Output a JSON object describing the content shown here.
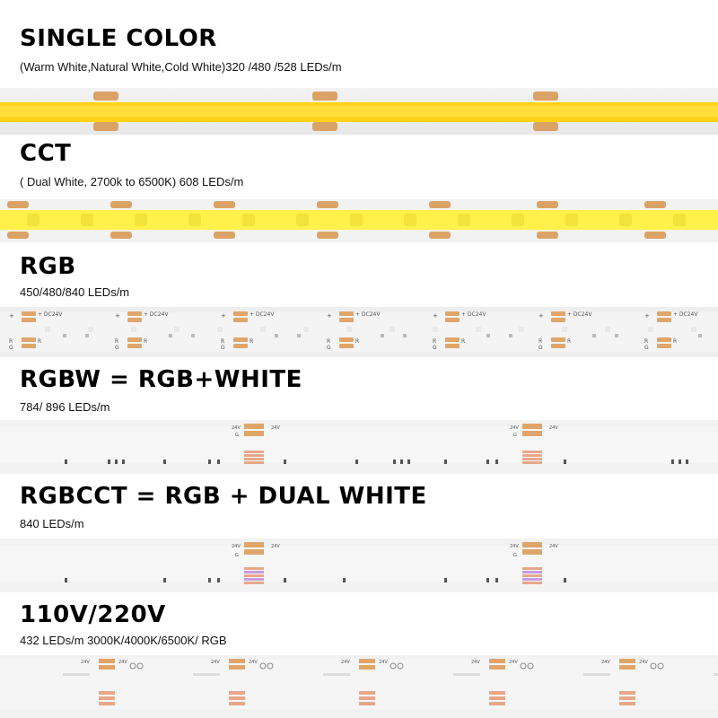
{
  "sections": [
    {
      "title": "SINGLE COLOR",
      "subtitle": "(Warm White,Natural White,Cold White)320 /480 /528 LEDs/m",
      "strip_type": "single-color-cob"
    },
    {
      "title": "CCT",
      "subtitle": "( Dual White, 2700k to 6500K) 608 LEDs/m",
      "strip_type": "cct-dual-white"
    },
    {
      "title": "RGB",
      "subtitle": "450/480/840 LEDs/m",
      "strip_type": "rgb",
      "pad_labels": {
        "voltage": "DC24V",
        "plus": "+",
        "r": "R",
        "g": "G"
      }
    },
    {
      "title": "RGBW = RGB+WHITE",
      "subtitle": "784/ 896 LEDs/m",
      "strip_type": "rgbw",
      "pad_labels": {
        "voltage": "24V",
        "g": "G"
      }
    },
    {
      "title": "RGBCCT = RGB + DUAL WHITE",
      "subtitle": "840 LEDs/m",
      "strip_type": "rgbcct",
      "pad_labels": {
        "voltage": "24V",
        "g": "G"
      }
    },
    {
      "title": "110V/220V",
      "subtitle": "432 LEDs/m 3000K/4000K/6500K/ RGB",
      "strip_type": "high-voltage",
      "pad_labels": {
        "voltage": "24V"
      }
    }
  ],
  "colors": {
    "yellow_glow": "#ffd21a",
    "yellow_light": "#fff04a",
    "copper_pad": "#e0a56a",
    "strip_white": "#f0f0f0",
    "strip_edge": "#dcdcdc"
  }
}
